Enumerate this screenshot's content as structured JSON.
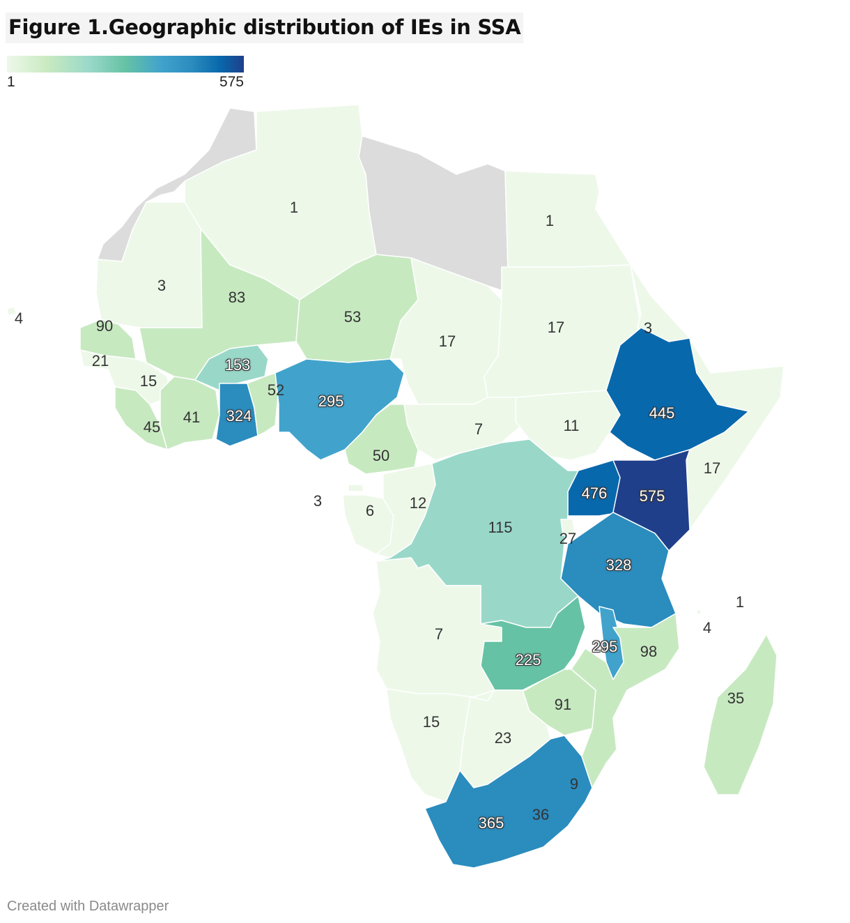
{
  "title": "Figure 1.Geographic distribution of IEs in SSA",
  "legend": {
    "min_label": "1",
    "max_label": "575"
  },
  "footer": "Created with Datawrapper",
  "colors": {
    "no_data": "#dcdcdc",
    "scale": [
      "#edf8e9",
      "#c7e9c0",
      "#99d8c9",
      "#66c2a4",
      "#41a3cc",
      "#2b8cbe",
      "#0868ac",
      "#1f3f8a"
    ]
  },
  "countries": [
    {
      "key": "morocco",
      "value": null
    },
    {
      "key": "algeria",
      "value": 1
    },
    {
      "key": "libya",
      "value": null
    },
    {
      "key": "egypt",
      "value": 1
    },
    {
      "key": "mauritania",
      "value": 3
    },
    {
      "key": "mali",
      "value": 83
    },
    {
      "key": "niger",
      "value": 53
    },
    {
      "key": "chad",
      "value": 17
    },
    {
      "key": "sudan",
      "value": 17
    },
    {
      "key": "eritrea",
      "value": 3
    },
    {
      "key": "cape-verde",
      "value": 4
    },
    {
      "key": "senegal",
      "value": 90
    },
    {
      "key": "guinea-bissau",
      "value": 21
    },
    {
      "key": "guinea",
      "value": 15
    },
    {
      "key": "sierra-leone",
      "value": 45
    },
    {
      "key": "cote-divoire",
      "value": 41
    },
    {
      "key": "burkina-faso",
      "value": 153
    },
    {
      "key": "ghana",
      "value": 324
    },
    {
      "key": "togo-benin",
      "value": 52
    },
    {
      "key": "nigeria",
      "value": 295
    },
    {
      "key": "cameroon",
      "value": 50
    },
    {
      "key": "car",
      "value": 7
    },
    {
      "key": "south-sudan",
      "value": 11
    },
    {
      "key": "ethiopia",
      "value": 445
    },
    {
      "key": "somalia",
      "value": 17
    },
    {
      "key": "uganda",
      "value": 476
    },
    {
      "key": "kenya",
      "value": 575
    },
    {
      "key": "equatorial-guinea",
      "value": 3
    },
    {
      "key": "gabon",
      "value": 6
    },
    {
      "key": "congo",
      "value": 12
    },
    {
      "key": "drc",
      "value": 115
    },
    {
      "key": "rwanda",
      "value": 27
    },
    {
      "key": "tanzania",
      "value": 328
    },
    {
      "key": "angola",
      "value": 7
    },
    {
      "key": "zambia",
      "value": 225
    },
    {
      "key": "malawi",
      "value": 295
    },
    {
      "key": "mozambique",
      "value": 98
    },
    {
      "key": "comoros",
      "value": 4
    },
    {
      "key": "seychelles",
      "value": 1
    },
    {
      "key": "madagascar",
      "value": 35
    },
    {
      "key": "zimbabwe",
      "value": 91
    },
    {
      "key": "namibia",
      "value": 15
    },
    {
      "key": "botswana",
      "value": 23
    },
    {
      "key": "eswatini",
      "value": 9
    },
    {
      "key": "lesotho",
      "value": 36
    },
    {
      "key": "south-africa",
      "value": 365
    }
  ]
}
